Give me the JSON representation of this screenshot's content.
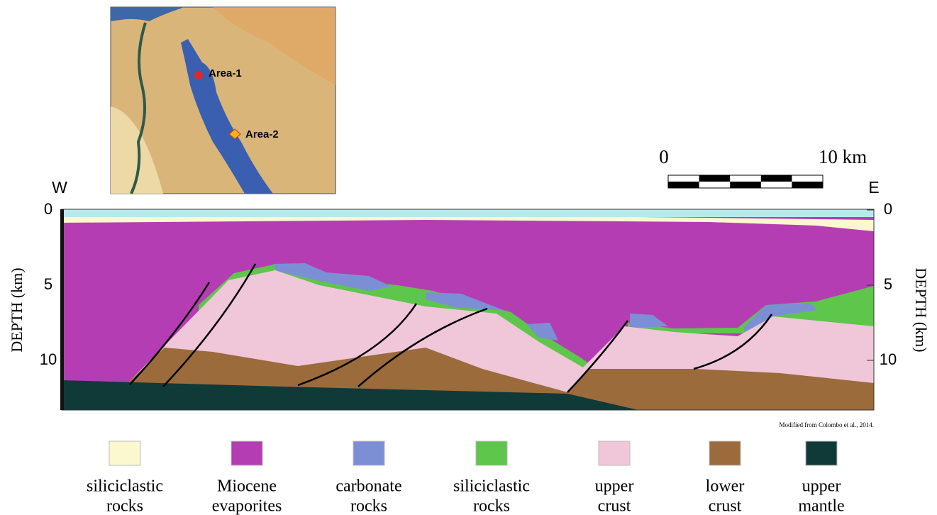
{
  "map": {
    "labels": [
      "Area-1",
      "Area-2"
    ]
  },
  "scale_bar": {
    "start": "0",
    "end": "10 km"
  },
  "section": {
    "west": "W",
    "east": "E",
    "depth_axis": {
      "label": "DEPTH (km)",
      "ticks": [
        0,
        5,
        10
      ]
    },
    "credit": "Modified from Colombo et al., 2014."
  },
  "legend": [
    {
      "lines": [
        "siliciclastic",
        "rocks"
      ],
      "color": "#fbf7cf"
    },
    {
      "lines": [
        "Miocene",
        "evaporites"
      ],
      "color": "#b53db3"
    },
    {
      "lines": [
        "carbonate",
        "rocks"
      ],
      "color": "#7c8fd5"
    },
    {
      "lines": [
        "siliciclastic",
        "rocks"
      ],
      "color": "#5dc64b"
    },
    {
      "lines": [
        "upper",
        "crust"
      ],
      "color": "#f0c6d9"
    },
    {
      "lines": [
        "lower",
        "crust"
      ],
      "color": "#9b6b3c"
    },
    {
      "lines": [
        "upper",
        "mantle"
      ],
      "color": "#0f3a38"
    }
  ]
}
